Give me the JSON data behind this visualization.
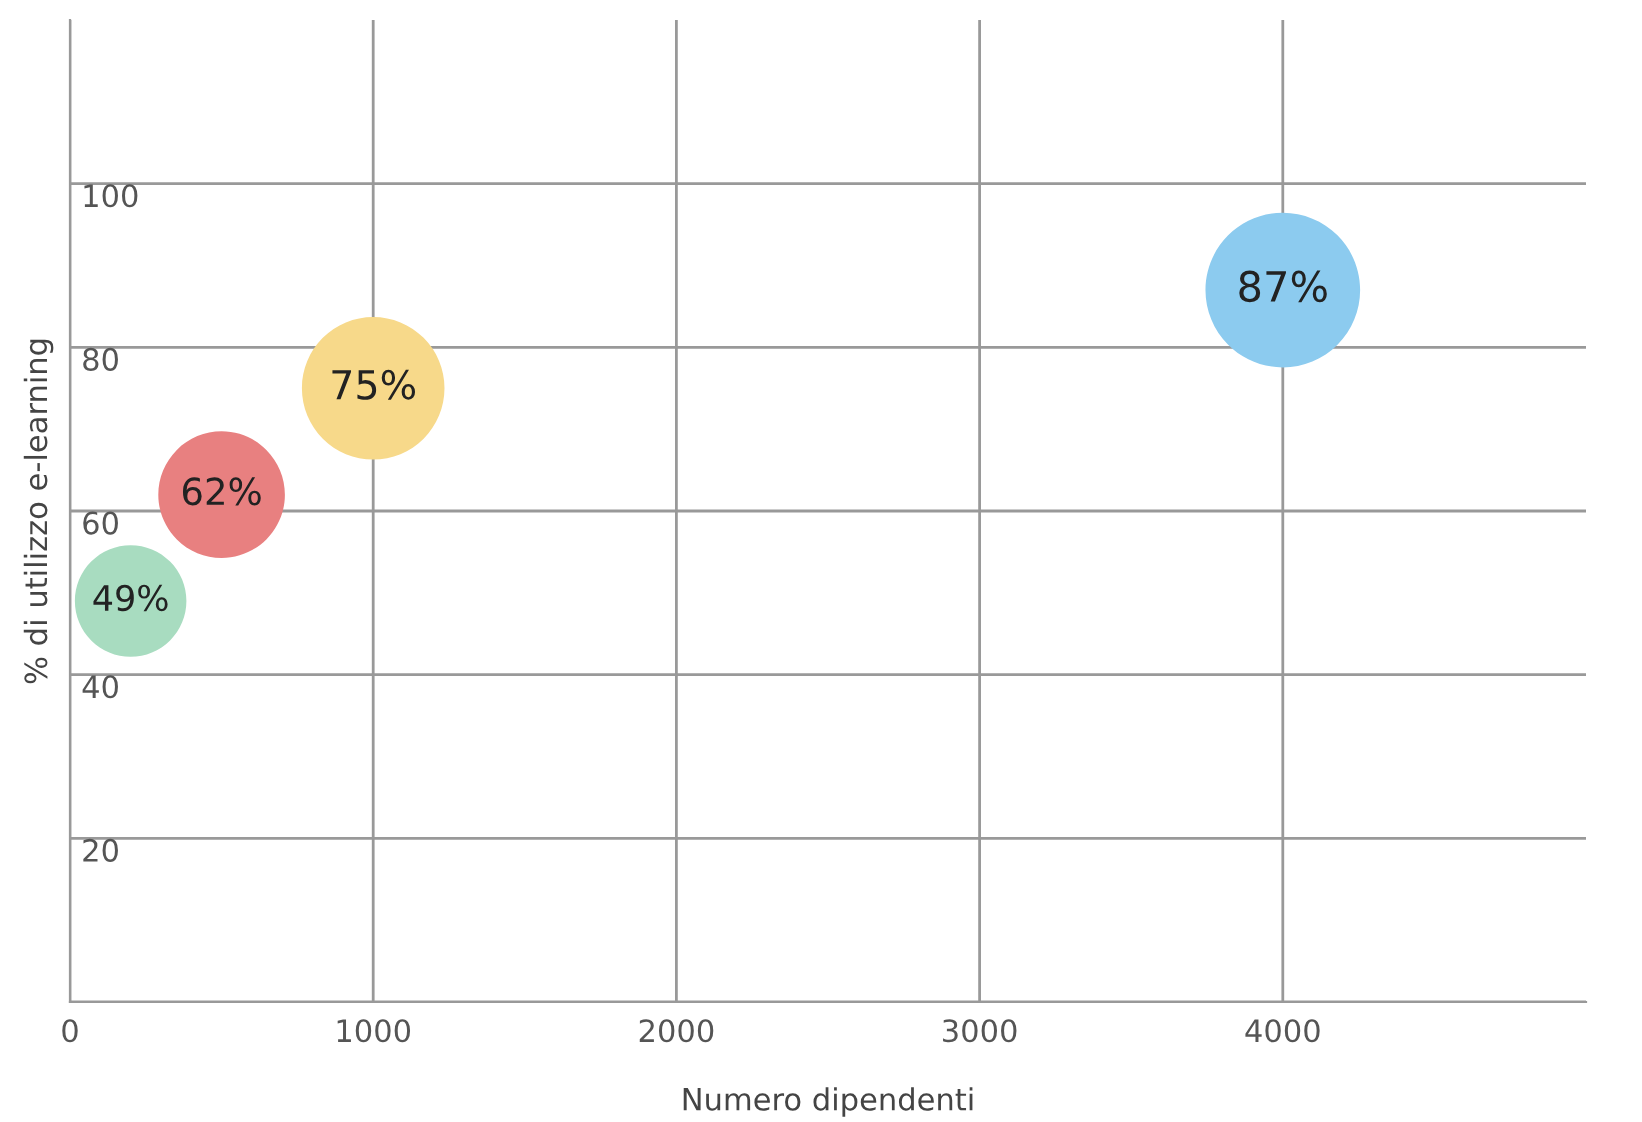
{
  "chart_data": {
    "type": "bubble",
    "xlabel": "Numero dipendenti",
    "ylabel": "% di utilizzo e-learning",
    "x": [
      200,
      500,
      1000,
      4000
    ],
    "values": [
      49,
      62,
      75,
      87
    ],
    "sizes": [
      0.52,
      0.67,
      0.85,
      1
    ],
    "colors": [
      "#a8dcc0",
      "#e88080",
      "#f7d98a",
      "#8ccbef"
    ],
    "value_labels": [
      "49%",
      "62%",
      "75%",
      "87%"
    ],
    "xlim": [
      0,
      5000
    ],
    "ylim": [
      0,
      120
    ],
    "xticks": [
      0,
      1000,
      2000,
      3000,
      4000
    ],
    "yticks": [
      {
        "value": 0,
        "label": null
      },
      20,
      40,
      60,
      80,
      100
    ],
    "grid": true,
    "legend": false
  }
}
